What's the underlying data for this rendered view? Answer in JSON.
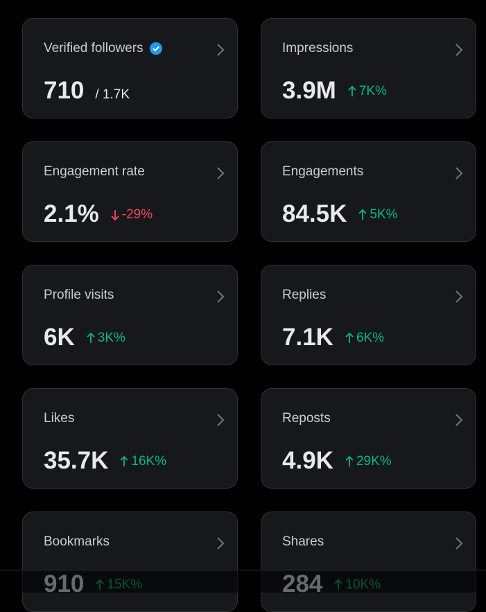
{
  "cards": [
    {
      "label": "Verified followers",
      "value": "710",
      "secondary": "/ 1.7K",
      "verified": true
    },
    {
      "label": "Impressions",
      "value": "3.9M",
      "change": "7K%",
      "direction": "up"
    },
    {
      "label": "Engagement rate",
      "value": "2.1%",
      "change": "-29%",
      "direction": "down"
    },
    {
      "label": "Engagements",
      "value": "84.5K",
      "change": "5K%",
      "direction": "up"
    },
    {
      "label": "Profile visits",
      "value": "6K",
      "change": "3K%",
      "direction": "up"
    },
    {
      "label": "Replies",
      "value": "7.1K",
      "change": "6K%",
      "direction": "up"
    },
    {
      "label": "Likes",
      "value": "35.7K",
      "change": "16K%",
      "direction": "up"
    },
    {
      "label": "Reposts",
      "value": "4.9K",
      "change": "29K%",
      "direction": "up"
    },
    {
      "label": "Bookmarks",
      "value": "910",
      "change": "15K%",
      "direction": "up"
    },
    {
      "label": "Shares",
      "value": "284",
      "change": "10K%",
      "direction": "up"
    }
  ]
}
